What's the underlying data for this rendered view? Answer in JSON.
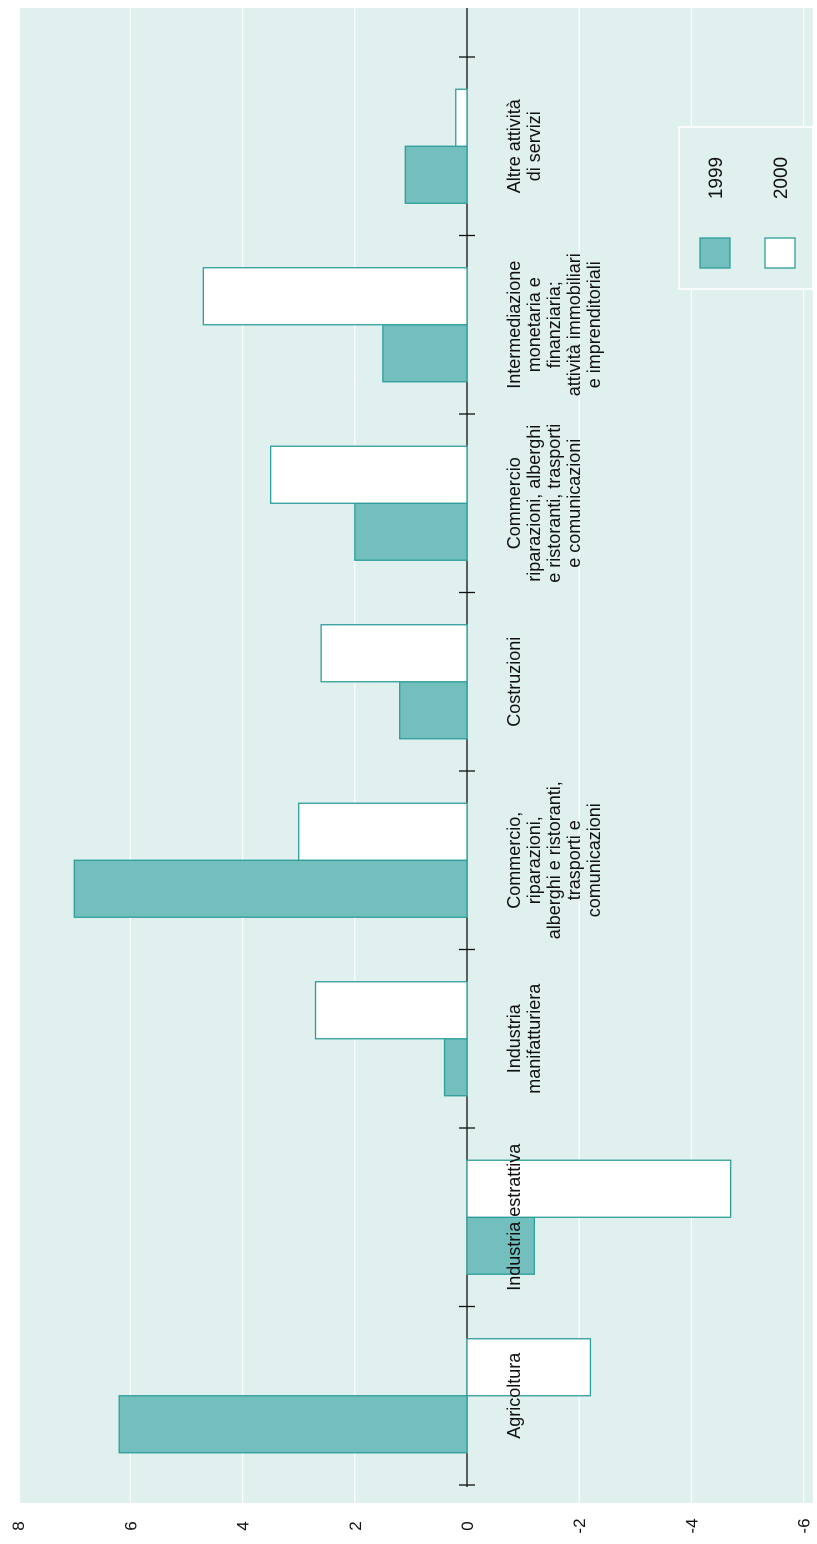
{
  "chart_data": {
    "type": "bar",
    "orientation": "horizontal-bars (figure rotated 90°)",
    "categories": [
      [
        "Agricoltura"
      ],
      [
        "Industria estrattiva"
      ],
      [
        "Industria",
        "manifatturiera"
      ],
      [
        "Commercio,",
        "riparazioni,",
        "alberghi e ristoranti,",
        "trasporti e",
        "comunicazioni"
      ],
      [
        "Costruzioni"
      ],
      [
        "Commercio",
        "riparazioni, alberghi",
        "e ristoranti, trasporti",
        "e comunicazioni"
      ],
      [
        "Intermediazione",
        "monetaria e",
        "finanziaria;",
        "attività immobiliari",
        "e imprenditoriali"
      ],
      [
        "Altre attività",
        "di servizi"
      ]
    ],
    "series": [
      {
        "name": "1999",
        "values": [
          6.2,
          -1.2,
          0.4,
          7.0,
          1.2,
          2.0,
          1.5,
          1.1
        ]
      },
      {
        "name": "2000",
        "values": [
          -2.2,
          -4.7,
          2.7,
          3.0,
          2.6,
          3.5,
          4.7,
          0.2
        ]
      }
    ],
    "value_ticks": [
      "8",
      "6",
      "4",
      "2",
      "0",
      "-2",
      "-4",
      "-6"
    ],
    "ylim": [
      -6,
      8
    ],
    "grid": true,
    "legend_position": "top-right",
    "colors": {
      "background": "#dff0ef",
      "bar_1999": "#72bfbd",
      "bar_2000": "#ffffff",
      "bar_stroke": "#2e9e9a",
      "grid": "#ffffff",
      "axis": "#111111"
    }
  }
}
